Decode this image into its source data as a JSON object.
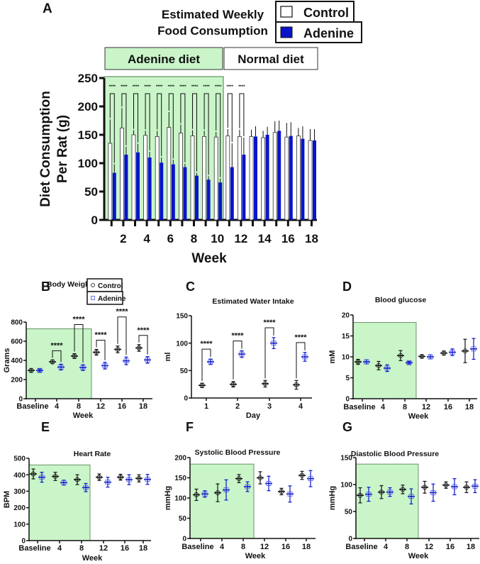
{
  "colors": {
    "adenine": "#0a14c8",
    "adenine_points": "#4a55e6",
    "control": "#111111",
    "shade": "#c9f5c9",
    "shade_border": "#4a7a4a"
  },
  "panel_a": {
    "letter": "A",
    "title_line1": "Estimated Weekly",
    "title_line2": "Food Consumption",
    "legend_control": "Control",
    "legend_adenine": "Adenine",
    "band_adenine": "Adenine diet",
    "band_normal": "Normal diet"
  },
  "chart_data": [
    {
      "id": "A",
      "type": "bar",
      "title": "Estimated Weekly Food Consumption",
      "xlabel": "Week",
      "ylabel_line1": "Diet Consumption",
      "ylabel_line2": "Per Rat (g)",
      "x": [
        1,
        2,
        3,
        4,
        5,
        6,
        7,
        8,
        9,
        10,
        11,
        12,
        13,
        14,
        15,
        16,
        17,
        18
      ],
      "xtick_labels": [
        "",
        "2",
        "",
        "4",
        "",
        "6",
        "",
        "8",
        "",
        "10",
        "",
        "12",
        "",
        "14",
        "",
        "16",
        "",
        "18"
      ],
      "ylim": [
        0,
        250
      ],
      "yticks": [
        0,
        50,
        100,
        150,
        200,
        250
      ],
      "shaded_until_week": 10,
      "series": [
        {
          "name": "Control",
          "values": [
            135,
            162,
            150,
            149,
            147,
            163,
            153,
            148,
            147,
            146,
            148,
            147,
            147,
            145,
            154,
            146,
            148,
            140
          ],
          "sd": [
            42,
            35,
            8,
            8,
            10,
            27,
            15,
            10,
            10,
            9,
            12,
            12,
            12,
            12,
            20,
            25,
            14,
            20
          ]
        },
        {
          "name": "Adenine",
          "values": [
            83,
            115,
            119,
            110,
            101,
            98,
            93,
            78,
            71,
            66,
            93,
            115,
            147,
            150,
            157,
            148,
            143,
            140
          ],
          "sd": [
            15,
            14,
            15,
            10,
            9,
            8,
            6,
            5,
            6,
            7,
            42,
            30,
            18,
            14,
            18,
            24,
            22,
            20
          ]
        }
      ],
      "significance": [
        {
          "week": 1,
          "label": "****"
        },
        {
          "week": 2,
          "label": "****"
        },
        {
          "week": 3,
          "label": "****"
        },
        {
          "week": 4,
          "label": "****"
        },
        {
          "week": 5,
          "label": "****"
        },
        {
          "week": 6,
          "label": "****"
        },
        {
          "week": 7,
          "label": "****"
        },
        {
          "week": 8,
          "label": "****"
        },
        {
          "week": 9,
          "label": "****"
        },
        {
          "week": 10,
          "label": "****"
        },
        {
          "week": 11,
          "label": "****"
        },
        {
          "week": 12,
          "label": "****"
        }
      ]
    },
    {
      "id": "B",
      "letter": "B",
      "type": "scatter",
      "title": "Body Weight",
      "xlabel": "Week",
      "ylabel": "Grams",
      "categories": [
        "Baseline",
        "4",
        "8",
        "12",
        "16",
        "18"
      ],
      "ylim": [
        0,
        800
      ],
      "yticks": [
        0,
        200,
        400,
        600,
        800
      ],
      "shaded_until_index": 2,
      "shade_top": 730,
      "legend": [
        "Control",
        "Adenine"
      ],
      "series": [
        {
          "name": "Control",
          "values": [
            295,
            385,
            445,
            485,
            515,
            530
          ],
          "sd": [
            20,
            20,
            25,
            30,
            35,
            35
          ]
        },
        {
          "name": "Adenine",
          "values": [
            295,
            330,
            325,
            345,
            395,
            405
          ],
          "sd": [
            15,
            30,
            30,
            35,
            40,
            35
          ]
        }
      ],
      "significance": [
        {
          "index": 1,
          "label": "****",
          "level": 1
        },
        {
          "index": 2,
          "label": "****",
          "level": 2
        },
        {
          "index": 3,
          "label": "****",
          "level": 1
        },
        {
          "index": 4,
          "label": "****",
          "level": 2
        },
        {
          "index": 5,
          "label": "****",
          "level": 1
        }
      ]
    },
    {
      "id": "C",
      "letter": "C",
      "type": "scatter",
      "title": "Estimated Water Intake",
      "xlabel": "Day",
      "ylabel": "ml",
      "categories": [
        "1",
        "2",
        "3",
        "4"
      ],
      "ylim": [
        0,
        150
      ],
      "yticks": [
        0,
        50,
        100,
        150
      ],
      "series": [
        {
          "name": "Control",
          "values": [
            23,
            25,
            26,
            24
          ],
          "sd": [
            4,
            5,
            6,
            8
          ]
        },
        {
          "name": "Adenine",
          "values": [
            66,
            80,
            100,
            75
          ],
          "sd": [
            5,
            6,
            10,
            8
          ]
        }
      ],
      "significance": [
        {
          "index": 0,
          "label": "****",
          "level": 1
        },
        {
          "index": 1,
          "label": "****",
          "level": 1
        },
        {
          "index": 2,
          "label": "****",
          "level": 1
        },
        {
          "index": 3,
          "label": "****",
          "level": 1
        }
      ]
    },
    {
      "id": "D",
      "letter": "D",
      "type": "scatter",
      "title": "Blood glucose",
      "xlabel": "Week",
      "ylabel": "mM",
      "categories": [
        "Baseline",
        "4",
        "8",
        "12",
        "16",
        "18"
      ],
      "ylim": [
        0,
        20
      ],
      "yticks": [
        0,
        5,
        10,
        15,
        20
      ],
      "shaded_until_index": 2,
      "shade_top": 18.2,
      "series": [
        {
          "name": "Control",
          "values": [
            8.8,
            7.9,
            10.3,
            10.1,
            10.9,
            11.4
          ],
          "sd": [
            0.6,
            1.0,
            1.2,
            0.4,
            0.5,
            2.8
          ]
        },
        {
          "name": "Adenine",
          "values": [
            8.8,
            7.3,
            8.6,
            10.0,
            11.1,
            11.9
          ],
          "sd": [
            0.5,
            0.8,
            0.3,
            0.5,
            0.8,
            2.5
          ]
        }
      ]
    },
    {
      "id": "E",
      "letter": "E",
      "type": "scatter",
      "title": "Heart Rate",
      "xlabel": "Week",
      "ylabel": "BPM",
      "categories": [
        "Baseline",
        "4",
        "8",
        "12",
        "16",
        "18"
      ],
      "ylim": [
        0,
        500
      ],
      "yticks": [
        0,
        100,
        200,
        300,
        400,
        500
      ],
      "shaded_until_index": 2,
      "shade_top": 460,
      "series": [
        {
          "name": "Control",
          "values": [
            405,
            390,
            370,
            385,
            385,
            378
          ],
          "sd": [
            30,
            25,
            30,
            20,
            18,
            22
          ]
        },
        {
          "name": "Adenine",
          "values": [
            385,
            352,
            322,
            355,
            370,
            372
          ],
          "sd": [
            30,
            15,
            25,
            30,
            30,
            30
          ]
        }
      ]
    },
    {
      "id": "F",
      "letter": "F",
      "type": "scatter",
      "title": "Systolic Blood Pressure",
      "xlabel": "Week",
      "ylabel": "mmHg",
      "categories": [
        "Baseline",
        "4",
        "8",
        "12",
        "16",
        "18"
      ],
      "ylim": [
        0,
        200
      ],
      "yticks": [
        0,
        50,
        100,
        150,
        200
      ],
      "shaded_until_index": 2,
      "shade_top": 184,
      "series": [
        {
          "name": "Control",
          "values": [
            108,
            113,
            148,
            150,
            116,
            156
          ],
          "sd": [
            14,
            22,
            10,
            15,
            8,
            10
          ]
        },
        {
          "name": "Adenine",
          "values": [
            110,
            120,
            128,
            136,
            110,
            148
          ],
          "sd": [
            8,
            25,
            12,
            18,
            20,
            20
          ]
        }
      ]
    },
    {
      "id": "G",
      "letter": "G",
      "type": "scatter",
      "title": "Diastolic Blood Pressure",
      "xlabel": "Week",
      "ylabel": "mmHg",
      "categories": [
        "Baseline",
        "4",
        "8",
        "12",
        "16",
        "18"
      ],
      "ylim": [
        0,
        150
      ],
      "yticks": [
        0,
        50,
        100,
        150
      ],
      "shaded_until_index": 2,
      "shade_top": 138,
      "series": [
        {
          "name": "Control",
          "values": [
            80,
            86,
            91,
            95,
            99,
            95
          ],
          "sd": [
            14,
            12,
            8,
            11,
            6,
            10
          ]
        },
        {
          "name": "Adenine",
          "values": [
            82,
            86,
            78,
            85,
            96,
            97
          ],
          "sd": [
            13,
            8,
            14,
            16,
            15,
            12
          ]
        }
      ]
    }
  ]
}
